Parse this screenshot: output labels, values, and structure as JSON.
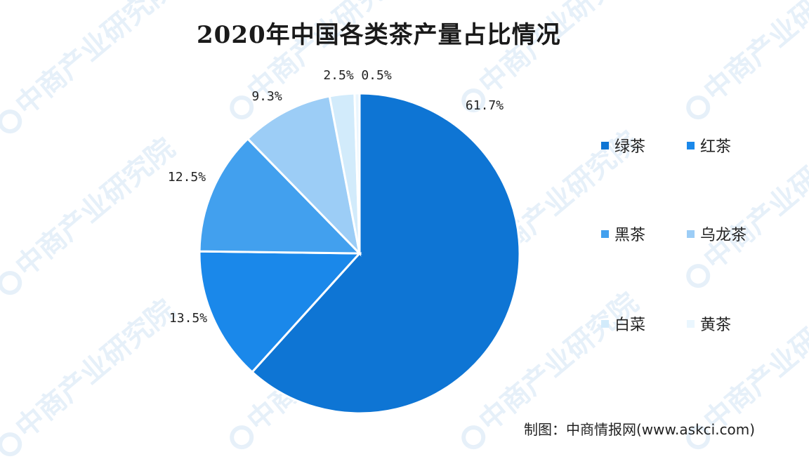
{
  "chart_data": {
    "type": "pie",
    "title": "2020年中国各类茶产量占比情况",
    "slices": [
      {
        "label": "绿茶",
        "value": 61.7,
        "display": "61.7%",
        "color": "#0e75d4"
      },
      {
        "label": "红茶",
        "value": 13.5,
        "display": "13.5%",
        "color": "#1a88ea"
      },
      {
        "label": "黑茶",
        "value": 12.5,
        "display": "12.5%",
        "color": "#42a0ee"
      },
      {
        "label": "乌龙茶",
        "value": 9.3,
        "display": "9.3%",
        "color": "#9ccdf6"
      },
      {
        "label": "白菜",
        "value": 2.5,
        "display": "2.5%",
        "color": "#d2ebfb"
      },
      {
        "label": "黄茶",
        "value": 0.5,
        "display": "0.5%",
        "color": "#eaf6fe"
      }
    ],
    "legend_position": "right"
  },
  "source": "制图：中商情报网(www.askci.com)",
  "watermark_text": "中商产业研究院"
}
